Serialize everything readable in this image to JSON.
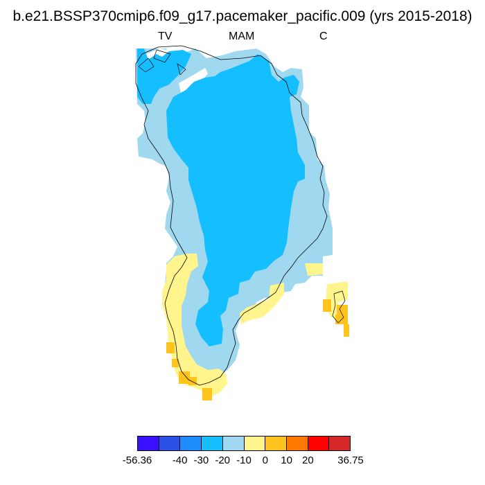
{
  "title": "b.e21.BSSP370cmip6.f09_g17.pacemaker_pacific.009 (yrs 2015-2018)",
  "subtitle_left": "TV",
  "subtitle_center": "MAM",
  "subtitle_right": "C",
  "colorbar": {
    "colors": [
      "#3b0fff",
      "#2b50e6",
      "#1e8cff",
      "#14beff",
      "#a0d8f0",
      "#fff58c",
      "#ffc31e",
      "#ff7800",
      "#ff0000",
      "#d72828"
    ],
    "labels": [
      "-56.36",
      "-40",
      "-30",
      "-20",
      "-10",
      "0",
      "10",
      "20",
      "36.75"
    ]
  },
  "legend_values": {
    "min": -56.36,
    "max": 36.75
  }
}
